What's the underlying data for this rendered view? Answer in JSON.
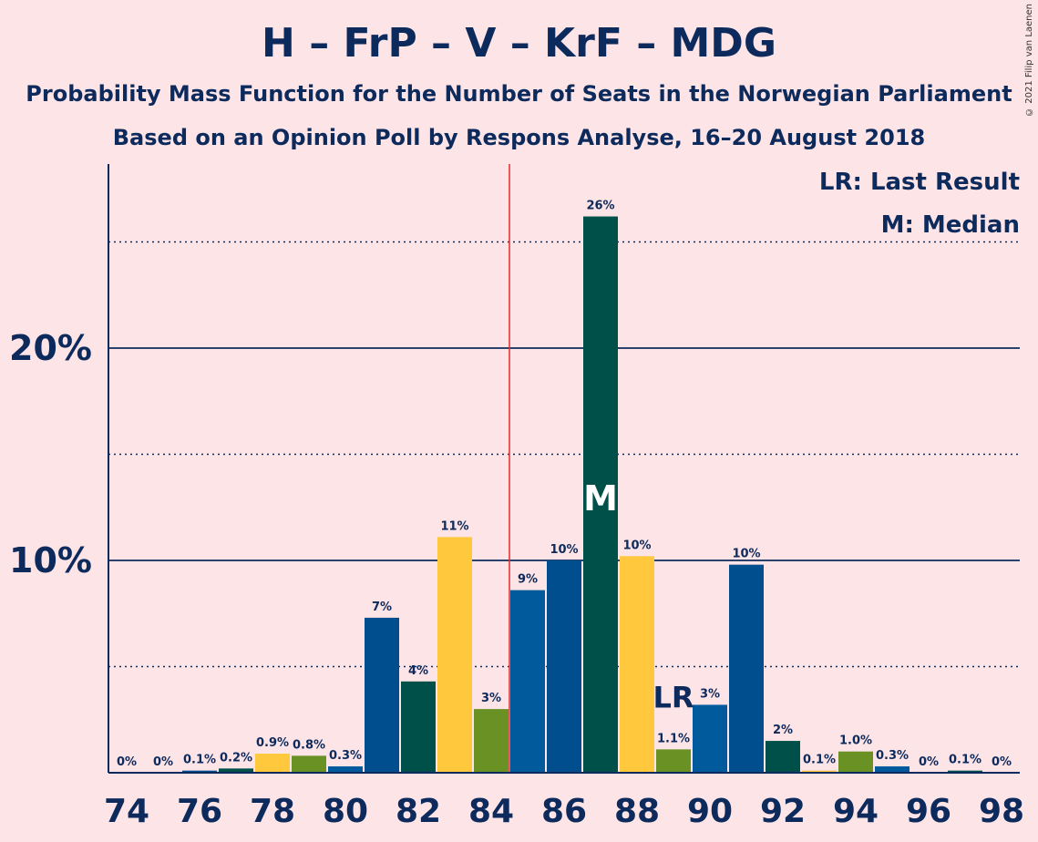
{
  "header": {
    "title": "H – FrP – V – KrF – MDG",
    "subtitle1": "Probability Mass Function for the Number of Seats in the Norwegian Parliament",
    "subtitle2": "Based on an Opinion Poll by Respons Analyse, 16–20 August 2018",
    "copyright": "© 2021 Filip van Laenen"
  },
  "legend": {
    "lr": "LR: Last Result",
    "m": "M: Median"
  },
  "colors": {
    "background": "#fde4e6",
    "axis": "#0d2a5c",
    "majority_line": "#e8282b",
    "bar_palette": [
      "#005a9c",
      "#004e8e",
      "#00504a",
      "#ffc83d",
      "#6a9124"
    ]
  },
  "chart_data": {
    "type": "bar",
    "title": "H – FrP – V – KrF – MDG",
    "xlabel": "",
    "ylabel": "",
    "ylim": [
      0,
      28.5
    ],
    "yticks": [
      10,
      20
    ],
    "ytick_labels": [
      "10%",
      "20%"
    ],
    "dotted_gridlines": [
      5,
      15,
      25
    ],
    "x": [
      74,
      75,
      76,
      77,
      78,
      79,
      80,
      81,
      82,
      83,
      84,
      85,
      86,
      87,
      88,
      89,
      90,
      91,
      92,
      93,
      94,
      95,
      96,
      97,
      98
    ],
    "xtick_labels": [
      "74",
      "76",
      "78",
      "80",
      "82",
      "84",
      "86",
      "88",
      "90",
      "92",
      "94",
      "96",
      "98"
    ],
    "values": [
      0,
      0,
      0.1,
      0.2,
      0.9,
      0.8,
      0.3,
      7.3,
      4.3,
      11.1,
      3.0,
      8.6,
      10.0,
      26.2,
      10.2,
      1.1,
      3.2,
      9.8,
      1.5,
      0.1,
      1.0,
      0.3,
      0,
      0.1,
      0
    ],
    "labels": [
      "0%",
      "0%",
      "0.1%",
      "0.2%",
      "0.9%",
      "0.8%",
      "0.3%",
      "7%",
      "4%",
      "11%",
      "3%",
      "9%",
      "10%",
      "26%",
      "10%",
      "1.1%",
      "3%",
      "10%",
      "2%",
      "0.1%",
      "1.0%",
      "0.3%",
      "0%",
      "0.1%",
      "0%"
    ],
    "bar_colors": [
      "#004e8e",
      "#00504a",
      "#004e8e",
      "#00504a",
      "#ffc83d",
      "#6a9124",
      "#005a9c",
      "#004e8e",
      "#00504a",
      "#ffc83d",
      "#6a9124",
      "#005a9c",
      "#004e8e",
      "#00504a",
      "#ffc83d",
      "#6a9124",
      "#005a9c",
      "#004e8e",
      "#00504a",
      "#ffc83d",
      "#6a9124",
      "#005a9c",
      "#004e8e",
      "#00504a",
      "#ffc83d"
    ],
    "majority_seat": 84.5,
    "median_seat": 87,
    "median_label": "M",
    "last_result_seat": 89,
    "last_result_label": "LR"
  }
}
